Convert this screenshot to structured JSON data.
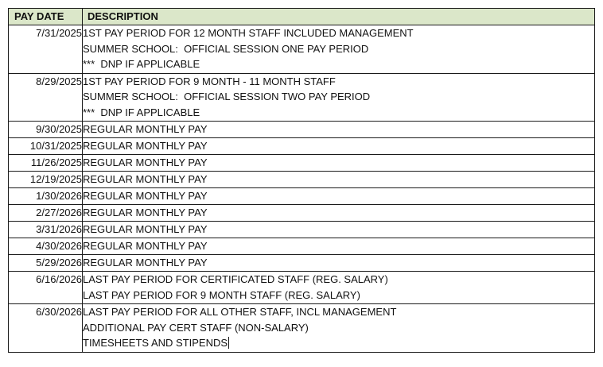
{
  "table": {
    "headers": {
      "date": "PAY DATE",
      "description": "DESCRIPTION"
    },
    "rows": [
      {
        "date": "7/31/2025",
        "lines": [
          "1ST PAY PERIOD FOR 12 MONTH STAFF INCLUDED MANAGEMENT",
          "SUMMER SCHOOL:  OFFICIAL SESSION ONE PAY PERIOD",
          "***  DNP IF APPLICABLE"
        ]
      },
      {
        "date": "8/29/2025",
        "lines": [
          "1ST PAY PERIOD FOR 9 MONTH - 11 MONTH STAFF",
          "SUMMER SCHOOL:  OFFICIAL SESSION TWO PAY PERIOD",
          "***  DNP IF APPLICABLE"
        ]
      },
      {
        "date": "9/30/2025",
        "lines": [
          "REGULAR MONTHLY PAY"
        ]
      },
      {
        "date": "10/31/2025",
        "lines": [
          "REGULAR MONTHLY PAY"
        ]
      },
      {
        "date": "11/26/2025",
        "lines": [
          "REGULAR MONTHLY PAY"
        ]
      },
      {
        "date": "12/19/2025",
        "lines": [
          "REGULAR MONTHLY PAY"
        ]
      },
      {
        "date": "1/30/2026",
        "lines": [
          "REGULAR MONTHLY PAY"
        ]
      },
      {
        "date": "2/27/2026",
        "lines": [
          "REGULAR MONTHLY PAY"
        ]
      },
      {
        "date": "3/31/2026",
        "lines": [
          "REGULAR MONTHLY PAY"
        ]
      },
      {
        "date": "4/30/2026",
        "lines": [
          "REGULAR MONTHLY PAY"
        ]
      },
      {
        "date": "5/29/2026",
        "lines": [
          "REGULAR MONTHLY PAY"
        ]
      },
      {
        "date": "6/16/2026",
        "lines": [
          "LAST PAY PERIOD FOR CERTIFICATED STAFF (REG. SALARY)",
          "LAST PAY PERIOD FOR 9 MONTH STAFF (REG. SALARY)"
        ]
      },
      {
        "date": "6/30/2026",
        "lines": [
          "LAST PAY PERIOD FOR ALL OTHER STAFF, INCL MANAGEMENT",
          "ADDITIONAL PAY CERT STAFF (NON-SALARY)",
          "TIMESHEETS AND STIPENDS"
        ]
      }
    ]
  },
  "colors": {
    "header_background": "#dbe7c9",
    "border": "#1a1a1a"
  }
}
